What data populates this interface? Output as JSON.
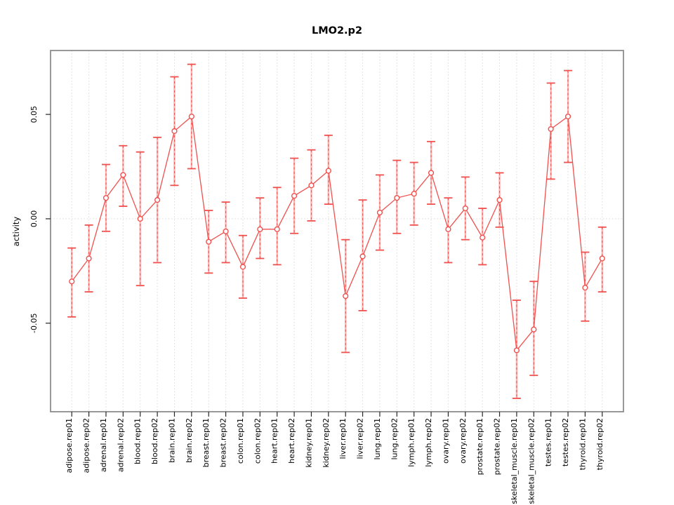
{
  "figure": {
    "title": "LMO2.p2",
    "ylabel": "activity",
    "xlabel": ""
  },
  "chart_data": {
    "type": "scatter",
    "subtype": "points-with-error-bars-connected-by-lines",
    "title": "LMO2.p2",
    "xlabel": "",
    "ylabel": "activity",
    "legend": null,
    "grid": "dotted vertical line at every category; dotted horizontal line at y=0",
    "ylim": [
      -0.0924,
      0.0806
    ],
    "yticks": [
      -0.05,
      0.0,
      0.05
    ],
    "ytick_labels": [
      "-0.05",
      "0.00",
      "0.05"
    ],
    "categories": [
      "adipose.rep01",
      "adipose.rep02",
      "adrenal.rep01",
      "adrenal.rep02",
      "blood.rep01",
      "blood.rep02",
      "brain.rep01",
      "brain.rep02",
      "breast.rep01",
      "breast.rep02",
      "colon.rep01",
      "colon.rep02",
      "heart.rep01",
      "heart.rep02",
      "kidney.rep01",
      "kidney.rep02",
      "liver.rep01",
      "liver.rep02",
      "lung.rep01",
      "lung.rep02",
      "lymph.rep01",
      "lymph.rep02",
      "ovary.rep01",
      "ovary.rep02",
      "prostate.rep01",
      "prostate.rep02",
      "skeletal_muscle.rep01",
      "skeletal_muscle.rep02",
      "testes.rep01",
      "testes.rep02",
      "thyroid.rep01",
      "thyroid.rep02"
    ],
    "series": [
      {
        "name": "activity",
        "values": [
          -0.03,
          -0.019,
          0.01,
          0.021,
          0.0,
          0.009,
          0.042,
          0.049,
          -0.011,
          -0.006,
          -0.023,
          -0.005,
          -0.005,
          0.011,
          0.016,
          0.023,
          -0.037,
          -0.018,
          0.003,
          0.01,
          0.012,
          0.022,
          -0.005,
          0.005,
          -0.009,
          0.009,
          -0.063,
          -0.053,
          0.043,
          0.049,
          -0.033,
          -0.019
        ],
        "lower": [
          -0.047,
          -0.035,
          -0.006,
          0.006,
          -0.032,
          -0.021,
          0.016,
          0.024,
          -0.026,
          -0.021,
          -0.038,
          -0.019,
          -0.022,
          -0.007,
          -0.001,
          0.007,
          -0.064,
          -0.044,
          -0.015,
          -0.007,
          -0.003,
          0.007,
          -0.021,
          -0.01,
          -0.022,
          -0.004,
          -0.086,
          -0.075,
          0.019,
          0.027,
          -0.049,
          -0.035
        ],
        "upper": [
          -0.014,
          -0.003,
          0.026,
          0.035,
          0.032,
          0.039,
          0.068,
          0.074,
          0.004,
          0.008,
          -0.008,
          0.01,
          0.015,
          0.029,
          0.033,
          0.04,
          -0.01,
          0.009,
          0.021,
          0.028,
          0.027,
          0.037,
          0.01,
          0.02,
          0.005,
          0.022,
          -0.039,
          -0.03,
          0.065,
          0.071,
          -0.016,
          -0.004
        ]
      }
    ],
    "colors": {
      "point_line": "#f0504e",
      "error_bar_fill": "#ffb2b0",
      "error_bar_cap": "#f0504e",
      "error_bar_dash": "#f0504e",
      "grid": "#d9d9d9",
      "box_border": "#7f7f7f",
      "tick": "#262626",
      "text": "#000000",
      "background": "#ffffff"
    }
  }
}
